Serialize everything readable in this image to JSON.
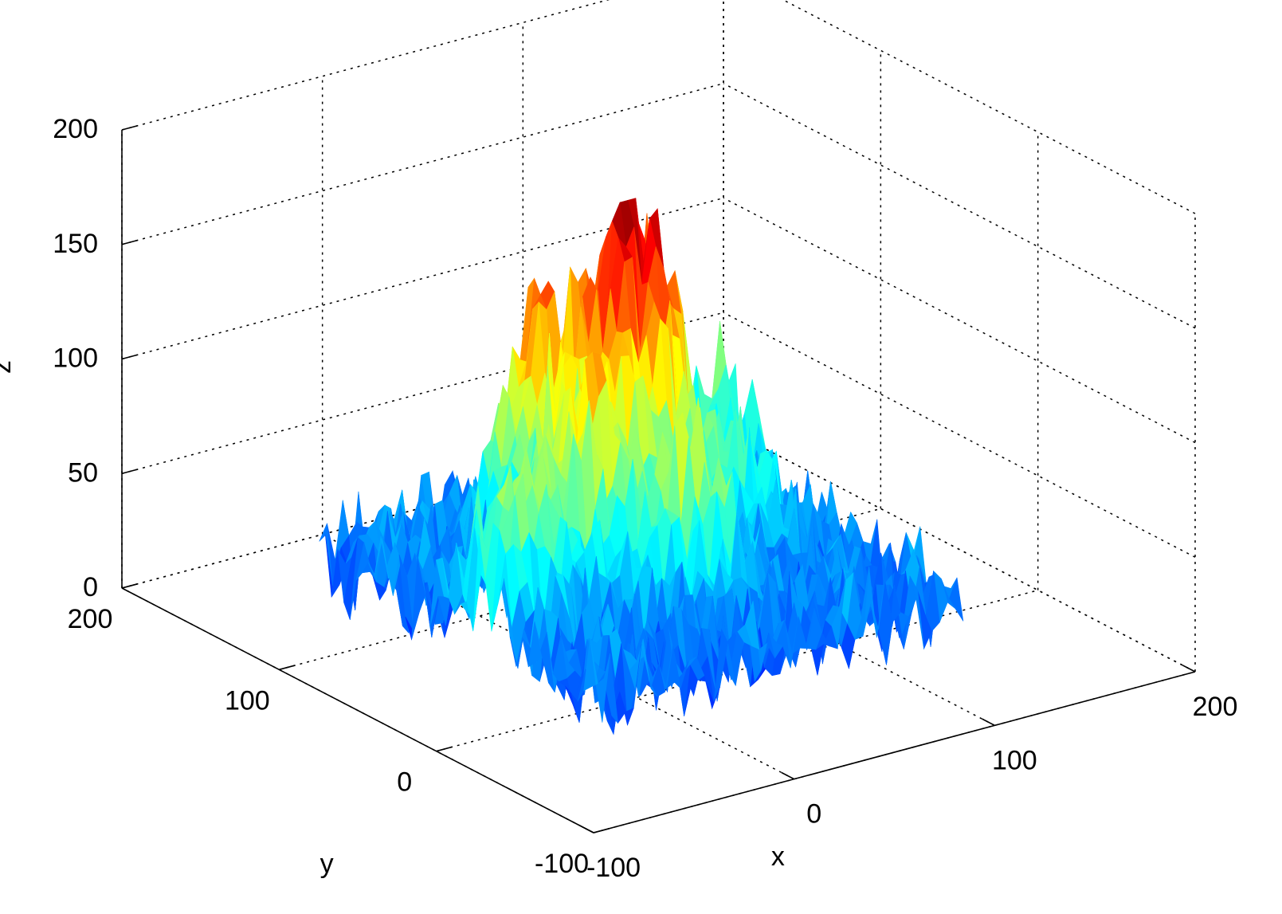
{
  "chart_data": {
    "type": "surface",
    "title": "",
    "xlabel": "x",
    "ylabel": "y",
    "zlabel": "z",
    "xlim": [
      -100,
      200
    ],
    "ylim": [
      -100,
      200
    ],
    "zlim": [
      0,
      200
    ],
    "x_ticks": [
      "-100",
      "0",
      "100",
      "200"
    ],
    "y_ticks": [
      "-100",
      "0",
      "100",
      "200"
    ],
    "z_ticks": [
      "0",
      "50",
      "100",
      "150",
      "200"
    ],
    "grid": true,
    "box": false,
    "colormap": "jet",
    "colormap_colors": [
      "#00008f",
      "#0000ff",
      "#0080ff",
      "#00ffff",
      "#80ff80",
      "#ffff00",
      "#ff8000",
      "#ff0000",
      "#800000"
    ],
    "surface_extent": {
      "x": [
        -80,
        100
      ],
      "y": [
        -80,
        100
      ]
    },
    "peaks": [
      {
        "x": 20,
        "y": 30,
        "z": 195
      },
      {
        "x": -20,
        "y": 10,
        "z": 160
      },
      {
        "x": -10,
        "y": 50,
        "z": 168
      },
      {
        "x": 40,
        "y": 40,
        "z": 140
      },
      {
        "x": 10,
        "y": -20,
        "z": 130
      },
      {
        "x": -60,
        "y": 0,
        "z": 120
      },
      {
        "x": 90,
        "y": 60,
        "z": 100
      },
      {
        "x": 60,
        "y": 10,
        "z": 95
      }
    ]
  }
}
